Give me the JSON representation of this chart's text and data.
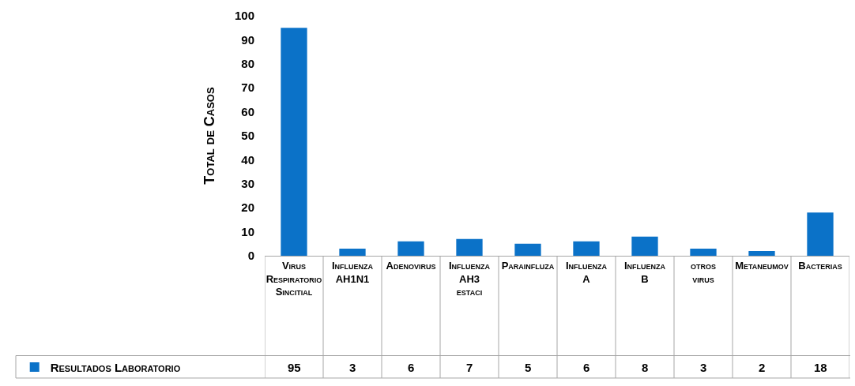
{
  "chart_data": {
    "type": "bar",
    "ylabel": "Total de Casos",
    "categories": [
      "Virus Respiratorio Sincitial",
      "Influenza AH1N1",
      "Adenovirus",
      "Influenza AH3 estaci",
      "Parainfluza",
      "Influenza A",
      "Influenza B",
      "otros virus",
      "Metaneumov",
      "Bacterias"
    ],
    "series": [
      {
        "name": "Resultados Laboratorio",
        "color": "#0b72c8",
        "values": [
          95,
          3,
          6,
          7,
          5,
          6,
          8,
          3,
          2,
          18
        ]
      }
    ],
    "ylim": [
      0,
      100
    ],
    "yticks": [
      0,
      10,
      20,
      30,
      40,
      50,
      60,
      70,
      80,
      90,
      100
    ],
    "grid": false,
    "legend": "bottom left",
    "data_labels": true
  }
}
